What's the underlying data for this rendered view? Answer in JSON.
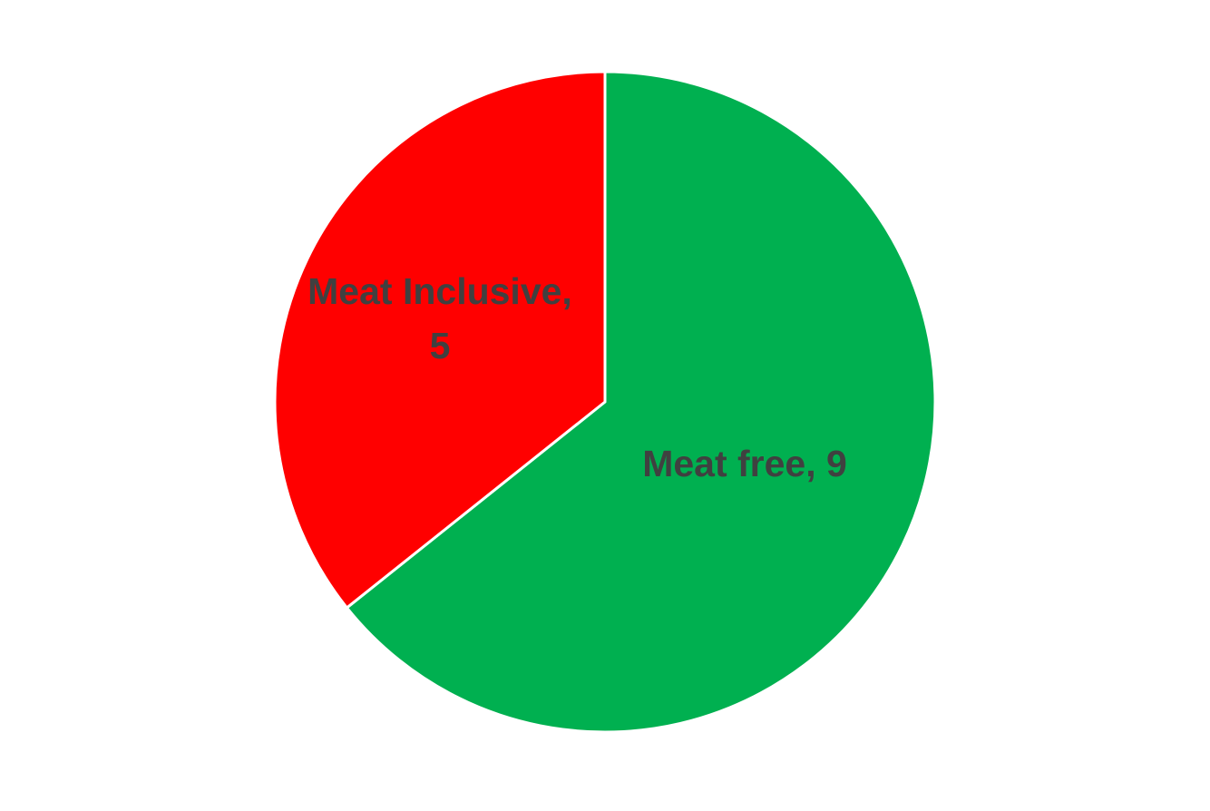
{
  "chart_data": {
    "type": "pie",
    "title": "",
    "slices": [
      {
        "label": "Meat free",
        "value": 9,
        "color": "#00B050",
        "data_label_lines": [
          "Meat free, 9"
        ]
      },
      {
        "label": "Meat Inclusive",
        "value": 5,
        "color": "#FF0000",
        "data_label_lines": [
          "Meat Inclusive,",
          "5"
        ]
      }
    ],
    "start_angle": "12 o'clock",
    "direction": "clockwise",
    "slice_border_color": "#FFFFFF",
    "label_color": "#404040",
    "legend": "none"
  }
}
